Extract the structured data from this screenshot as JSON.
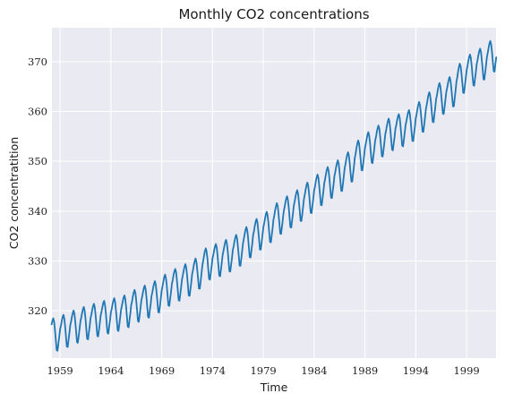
{
  "colors": {
    "background": "#ffffff",
    "plot_background": "#eaeaf2",
    "grid": "#ffffff",
    "series": "#1f77b4"
  },
  "chart_data": {
    "type": "line",
    "title": "Monthly CO2 concentrations",
    "xlabel": "Time",
    "ylabel": "CO2 concentratition",
    "xlim": [
      1958.2,
      2001.9
    ],
    "ylim": [
      310.5,
      376.8
    ],
    "x_ticks": [
      1959,
      1964,
      1969,
      1974,
      1979,
      1984,
      1989,
      1994,
      1999
    ],
    "x_tick_labels": [
      "1959",
      "1964",
      "1969",
      "1974",
      "1979",
      "1984",
      "1989",
      "1994",
      "1999"
    ],
    "y_ticks": [
      320,
      330,
      340,
      350,
      360,
      370
    ],
    "y_tick_labels": [
      "320",
      "330",
      "340",
      "350",
      "360",
      "370"
    ],
    "grid": true,
    "series": [
      {
        "start": "1958-03",
        "end": "2001-12",
        "frequency": "monthly",
        "annual_mean_by_year": {
          "1958": 315.2,
          "1959": 315.9,
          "1960": 316.8,
          "1961": 317.5,
          "1962": 318.1,
          "1963": 318.7,
          "1964": 319.2,
          "1965": 319.8,
          "1966": 321.0,
          "1967": 321.8,
          "1968": 322.7,
          "1969": 324.1,
          "1970": 325.2,
          "1971": 326.1,
          "1972": 327.3,
          "1973": 329.5,
          "1974": 330.1,
          "1975": 331.0,
          "1976": 332.0,
          "1977": 333.7,
          "1978": 335.3,
          "1979": 336.7,
          "1980": 338.5,
          "1981": 339.8,
          "1982": 341.0,
          "1983": 342.6,
          "1984": 344.2,
          "1985": 345.7,
          "1986": 347.0,
          "1987": 348.7,
          "1988": 351.2,
          "1989": 352.7,
          "1990": 354.0,
          "1991": 355.4,
          "1992": 356.2,
          "1993": 357.0,
          "1994": 358.8,
          "1995": 360.8,
          "1996": 362.6,
          "1997": 363.7,
          "1998": 366.7,
          "1999": 368.3,
          "2000": 369.4,
          "2001": 371.0
        },
        "seasonal_offset_by_month": [
          0.7,
          1.4,
          2.3,
          3.0,
          3.4,
          2.6,
          0.9,
          -1.2,
          -3.2,
          -3.4,
          -2.1,
          -0.8
        ]
      }
    ]
  }
}
